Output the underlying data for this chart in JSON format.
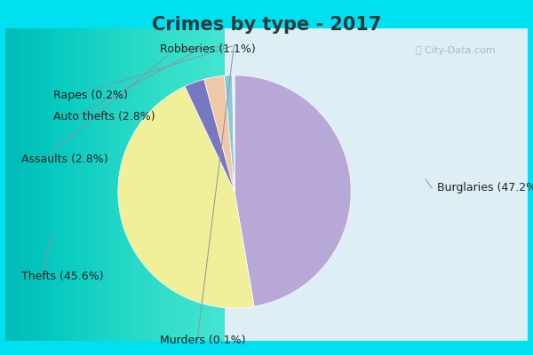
{
  "title": "Crimes by type - 2017",
  "slices": [
    {
      "label": "Burglaries",
      "pct": 47.2,
      "color": "#b8a8d8"
    },
    {
      "label": "Thefts",
      "pct": 45.6,
      "color": "#f0f09a"
    },
    {
      "label": "Assaults",
      "pct": 2.8,
      "color": "#7878c0"
    },
    {
      "label": "Auto thefts",
      "pct": 2.8,
      "color": "#f0c8a8"
    },
    {
      "label": "Robberies",
      "pct": 1.1,
      "color": "#88c8d8"
    },
    {
      "label": "Rapes",
      "pct": 0.2,
      "color": "#d0d8f0"
    },
    {
      "label": "Murders",
      "pct": 0.1,
      "color": "#90c890"
    }
  ],
  "outer_bg": "#00e0f0",
  "inner_bg_left": "#c8e8d8",
  "inner_bg_right": "#e0eef4",
  "title_color": "#2a3a3a",
  "title_fontsize": 15,
  "label_fontsize": 9,
  "watermark": "City-Data.com",
  "watermark_color": "#a0b8c0",
  "label_color": "#222222",
  "line_color": "#9090a0"
}
